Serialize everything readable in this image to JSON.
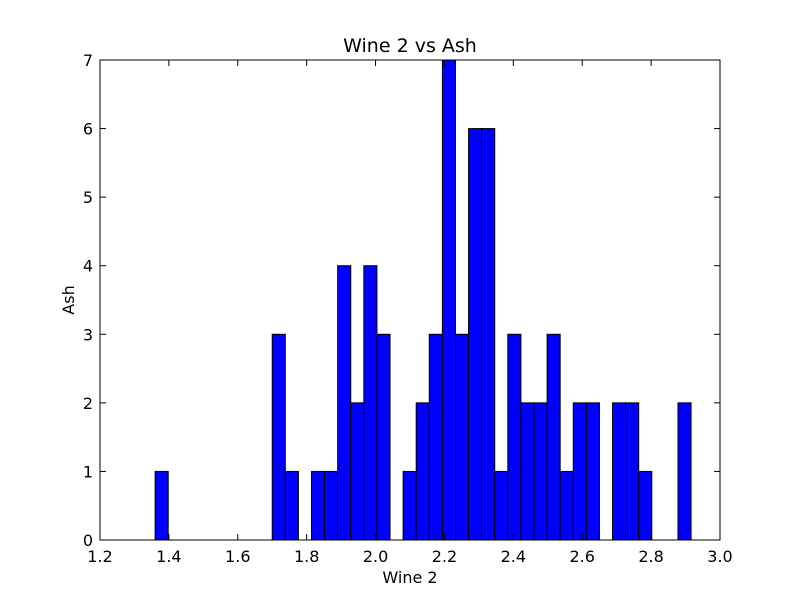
{
  "chart_data": {
    "type": "bar",
    "title": "Wine 2 vs Ash",
    "xlabel": "Wine 2",
    "ylabel": "Ash",
    "xlim": [
      1.2,
      3.0
    ],
    "ylim": [
      0,
      7
    ],
    "xticks": [
      "1.2",
      "1.4",
      "1.6",
      "1.8",
      "2.0",
      "2.2",
      "2.4",
      "2.6",
      "2.8",
      "3.0"
    ],
    "yticks": [
      "0",
      "1",
      "2",
      "3",
      "4",
      "5",
      "6",
      "7"
    ],
    "bar_color": "#0000ff",
    "bar_edge_color": "#000000",
    "grid": false,
    "bins": [
      {
        "x0": 1.36,
        "x1": 1.398,
        "value": 1
      },
      {
        "x0": 1.7,
        "x1": 1.738,
        "value": 3
      },
      {
        "x0": 1.738,
        "x1": 1.776,
        "value": 1
      },
      {
        "x0": 1.814,
        "x1": 1.852,
        "value": 1
      },
      {
        "x0": 1.852,
        "x1": 1.89,
        "value": 1
      },
      {
        "x0": 1.89,
        "x1": 1.928,
        "value": 4
      },
      {
        "x0": 1.928,
        "x1": 1.966,
        "value": 2
      },
      {
        "x0": 1.966,
        "x1": 2.004,
        "value": 4
      },
      {
        "x0": 2.004,
        "x1": 2.042,
        "value": 3
      },
      {
        "x0": 2.08,
        "x1": 2.118,
        "value": 1
      },
      {
        "x0": 2.118,
        "x1": 2.156,
        "value": 2
      },
      {
        "x0": 2.156,
        "x1": 2.194,
        "value": 3
      },
      {
        "x0": 2.194,
        "x1": 2.232,
        "value": 7
      },
      {
        "x0": 2.232,
        "x1": 2.27,
        "value": 3
      },
      {
        "x0": 2.27,
        "x1": 2.308,
        "value": 6
      },
      {
        "x0": 2.308,
        "x1": 2.346,
        "value": 6
      },
      {
        "x0": 2.346,
        "x1": 2.384,
        "value": 1
      },
      {
        "x0": 2.384,
        "x1": 2.422,
        "value": 3
      },
      {
        "x0": 2.422,
        "x1": 2.46,
        "value": 2
      },
      {
        "x0": 2.46,
        "x1": 2.498,
        "value": 2
      },
      {
        "x0": 2.498,
        "x1": 2.536,
        "value": 3
      },
      {
        "x0": 2.536,
        "x1": 2.574,
        "value": 1
      },
      {
        "x0": 2.574,
        "x1": 2.612,
        "value": 2
      },
      {
        "x0": 2.612,
        "x1": 2.65,
        "value": 2
      },
      {
        "x0": 2.688,
        "x1": 2.726,
        "value": 2
      },
      {
        "x0": 2.726,
        "x1": 2.764,
        "value": 2
      },
      {
        "x0": 2.764,
        "x1": 2.802,
        "value": 1
      },
      {
        "x0": 2.878,
        "x1": 2.916,
        "value": 2
      }
    ]
  }
}
